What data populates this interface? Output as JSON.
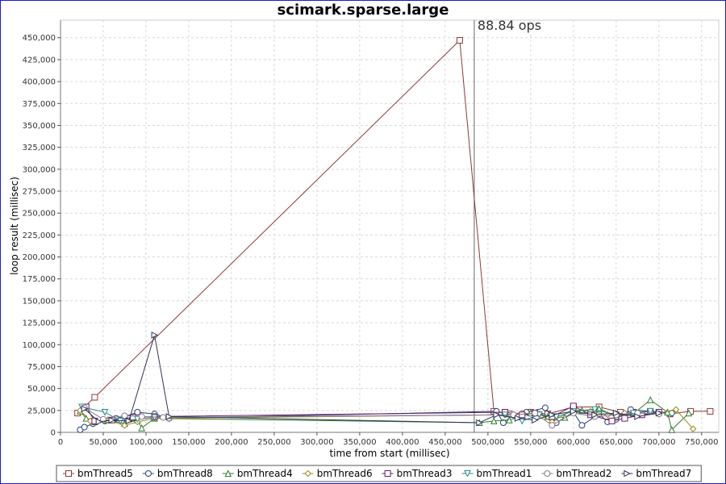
{
  "chart_data": {
    "type": "line",
    "title": "scimark.sparse.large",
    "xlabel": "time from start (millisec)",
    "ylabel": "loop result (millisec)",
    "xlim": [
      0,
      770000
    ],
    "ylim": [
      0,
      470000
    ],
    "x_ticks": [
      0,
      50000,
      100000,
      150000,
      200000,
      250000,
      300000,
      350000,
      400000,
      450000,
      500000,
      550000,
      600000,
      650000,
      700000,
      750000
    ],
    "x_tick_labels": [
      "0",
      "50,000",
      "100,000",
      "150,000",
      "200,000",
      "250,000",
      "300,000",
      "350,000",
      "400,000",
      "450,000",
      "500,000",
      "550,000",
      "600,000",
      "650,000",
      "700,000",
      "750,000"
    ],
    "y_ticks": [
      0,
      25000,
      50000,
      75000,
      100000,
      125000,
      150000,
      175000,
      200000,
      225000,
      250000,
      275000,
      300000,
      325000,
      350000,
      375000,
      400000,
      425000,
      450000
    ],
    "y_tick_labels": [
      "0",
      "25,000",
      "50,000",
      "75,000",
      "100,000",
      "125,000",
      "150,000",
      "175,000",
      "200,000",
      "225,000",
      "250,000",
      "275,000",
      "300,000",
      "325,000",
      "350,000",
      "375,000",
      "400,000",
      "425,000",
      "450,000"
    ],
    "grid": true,
    "legend_position": "bottom",
    "marker": {
      "x": 484000,
      "label": "88.84 ops"
    },
    "series": [
      {
        "name": "bmThread5",
        "color": "#8b3a3a",
        "marker": "square",
        "points": [
          [
            20000,
            22000
          ],
          [
            40000,
            40000
          ],
          [
            467000,
            447000
          ],
          [
            507000,
            24000
          ],
          [
            525000,
            21000
          ],
          [
            550000,
            23000
          ],
          [
            570000,
            21000
          ],
          [
            600000,
            29000
          ],
          [
            630000,
            29000
          ],
          [
            655000,
            23000
          ],
          [
            670000,
            23000
          ],
          [
            690000,
            24000
          ],
          [
            713000,
            21000
          ],
          [
            737000,
            24000
          ],
          [
            760000,
            24000
          ]
        ]
      },
      {
        "name": "bmThread8",
        "color": "#2a3f7a",
        "marker": "circle",
        "points": [
          [
            23000,
            3000
          ],
          [
            28000,
            6000
          ],
          [
            38000,
            10000
          ],
          [
            52000,
            13000
          ],
          [
            65000,
            16000
          ],
          [
            75000,
            18000
          ],
          [
            90000,
            23000
          ],
          [
            110000,
            21000
          ],
          [
            127000,
            16000
          ],
          [
            510000,
            24000
          ],
          [
            518000,
            11000
          ],
          [
            530000,
            20000
          ],
          [
            545000,
            23000
          ],
          [
            567000,
            28000
          ],
          [
            580000,
            11000
          ],
          [
            600000,
            23000
          ],
          [
            610000,
            8000
          ],
          [
            630000,
            21000
          ],
          [
            640000,
            12000
          ],
          [
            650000,
            15000
          ],
          [
            667000,
            26000
          ],
          [
            690000,
            24000
          ],
          [
            715000,
            22000
          ]
        ]
      },
      {
        "name": "bmThread4",
        "color": "#2e7d32",
        "marker": "triangle-up",
        "points": [
          [
            23000,
            24000
          ],
          [
            30000,
            16000
          ],
          [
            40000,
            12000
          ],
          [
            55000,
            14000
          ],
          [
            75000,
            10000
          ],
          [
            90000,
            14000
          ],
          [
            95000,
            5000
          ],
          [
            110000,
            16000
          ],
          [
            490000,
            11000
          ],
          [
            507000,
            13000
          ],
          [
            525000,
            14000
          ],
          [
            550000,
            22000
          ],
          [
            570000,
            18000
          ],
          [
            590000,
            17000
          ],
          [
            610000,
            25000
          ],
          [
            630000,
            27000
          ],
          [
            650000,
            18000
          ],
          [
            670000,
            21000
          ],
          [
            690000,
            37000
          ],
          [
            710000,
            23000
          ],
          [
            715000,
            3000
          ],
          [
            735000,
            22000
          ]
        ]
      },
      {
        "name": "bmThread6",
        "color": "#9a8a1a",
        "marker": "diamond",
        "points": [
          [
            23000,
            25000
          ],
          [
            35000,
            13000
          ],
          [
            55000,
            14000
          ],
          [
            75000,
            8000
          ],
          [
            90000,
            12000
          ],
          [
            110000,
            16000
          ],
          [
            520000,
            20000
          ],
          [
            540000,
            22000
          ],
          [
            560000,
            21000
          ],
          [
            575000,
            12000
          ],
          [
            600000,
            26000
          ],
          [
            620000,
            24000
          ],
          [
            640000,
            20000
          ],
          [
            660000,
            22000
          ],
          [
            680000,
            20000
          ],
          [
            700000,
            22000
          ],
          [
            720000,
            26000
          ],
          [
            740000,
            4000
          ]
        ]
      },
      {
        "name": "bmThread3",
        "color": "#6a1b6a",
        "marker": "square",
        "points": [
          [
            30000,
            29000
          ],
          [
            40000,
            13000
          ],
          [
            60000,
            14000
          ],
          [
            85000,
            17000
          ],
          [
            110000,
            18000
          ],
          [
            520000,
            23000
          ],
          [
            540000,
            20000
          ],
          [
            555000,
            22000
          ],
          [
            575000,
            18000
          ],
          [
            600000,
            30000
          ],
          [
            620000,
            20000
          ],
          [
            645000,
            13000
          ],
          [
            660000,
            16000
          ],
          [
            680000,
            20000
          ],
          [
            700000,
            23000
          ]
        ]
      },
      {
        "name": "bmThread1",
        "color": "#2a8b8b",
        "marker": "triangle-down",
        "points": [
          [
            25000,
            29000
          ],
          [
            52000,
            23000
          ],
          [
            70000,
            13000
          ],
          [
            90000,
            15000
          ],
          [
            110000,
            17000
          ],
          [
            520000,
            20000
          ],
          [
            540000,
            13000
          ],
          [
            560000,
            20000
          ],
          [
            580000,
            18000
          ],
          [
            600000,
            24000
          ],
          [
            625000,
            26000
          ],
          [
            650000,
            20000
          ],
          [
            670000,
            22000
          ],
          [
            690000,
            24000
          ]
        ]
      },
      {
        "name": "bmThread2",
        "color": "#8a7a8a",
        "marker": "circle",
        "points": [
          [
            28000,
            28000
          ],
          [
            50000,
            15000
          ],
          [
            75000,
            19000
          ],
          [
            95000,
            18000
          ],
          [
            120000,
            17000
          ],
          [
            530000,
            20000
          ],
          [
            555000,
            22000
          ],
          [
            575000,
            8000
          ],
          [
            600000,
            22000
          ],
          [
            625000,
            18000
          ],
          [
            650000,
            20000
          ],
          [
            675000,
            22000
          ],
          [
            700000,
            21000
          ]
        ]
      },
      {
        "name": "bmThread7",
        "color": "#333355",
        "marker": "triangle-right",
        "points": [
          [
            28000,
            27000
          ],
          [
            45000,
            12000
          ],
          [
            60000,
            14000
          ],
          [
            80000,
            13000
          ],
          [
            110000,
            111000
          ],
          [
            127000,
            18000
          ],
          [
            490000,
            11000
          ],
          [
            510000,
            20000
          ],
          [
            535000,
            16000
          ],
          [
            555000,
            14000
          ],
          [
            575000,
            20000
          ],
          [
            600000,
            24000
          ],
          [
            625000,
            20000
          ],
          [
            650000,
            22000
          ],
          [
            675000,
            18000
          ],
          [
            700000,
            22000
          ]
        ]
      }
    ]
  }
}
